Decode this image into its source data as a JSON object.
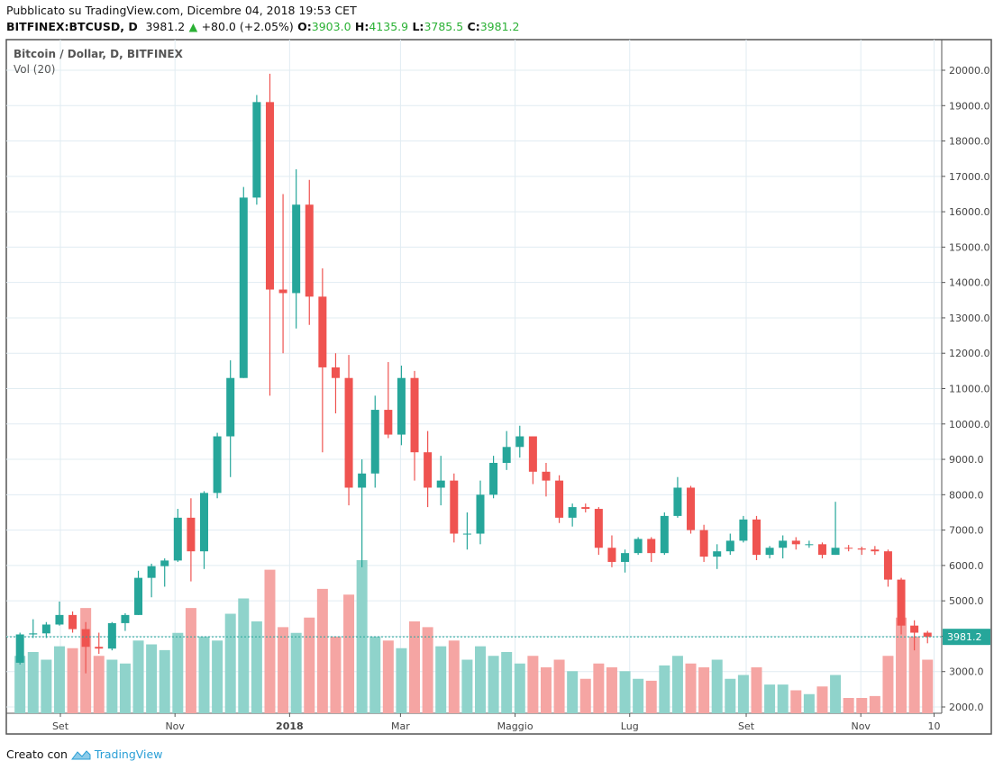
{
  "header": {
    "published": "Pubblicato su TradingView.com, Dicembre 04, 2018 19:53 CET",
    "symbol": "BITFINEX:BTCUSD, D",
    "last": "3981.2",
    "change": "+80.0 (+2.05%)",
    "o_label": "O:",
    "o": "3903.0",
    "h_label": "H:",
    "h": "4135.9",
    "l_label": "L:",
    "l": "3785.5",
    "c_label": "C:",
    "c": "3981.2"
  },
  "legend": {
    "title": "Bitcoin / Dollar, D, BITFINEX",
    "volume": "Vol (20)"
  },
  "footer": {
    "created_with": "Creato con",
    "brand": "TradingView"
  },
  "colors": {
    "up": "#26a69a",
    "down": "#ef5350",
    "vol_up": "#8fd3cb",
    "vol_down": "#f5a5a3",
    "grid": "#e1ecf2",
    "last_price": "#26a69a"
  },
  "chart_data": {
    "type": "candlestick",
    "interval_shown": "weekly approximation of daily candles",
    "ylim": [
      1800,
      20800
    ],
    "yticks": [
      "2000.0",
      "3000.0",
      "4000.0",
      "5000.0",
      "6000.0",
      "7000.0",
      "8000.0",
      "9000.0",
      "10000.0",
      "11000.0",
      "12000.0",
      "13000.0",
      "14000.0",
      "15000.0",
      "16000.0",
      "17000.0",
      "18000.0",
      "19000.0",
      "20000.0"
    ],
    "xticks": [
      {
        "date": "2017-09-01",
        "label": "Set"
      },
      {
        "date": "2017-11-01",
        "label": "Nov"
      },
      {
        "date": "2018-01-01",
        "label": "2018"
      },
      {
        "date": "2018-03-01",
        "label": "Mar"
      },
      {
        "date": "2018-05-01",
        "label": "Maggio"
      },
      {
        "date": "2018-07-01",
        "label": "Lug"
      },
      {
        "date": "2018-09-01",
        "label": "Set"
      },
      {
        "date": "2018-11-01",
        "label": "Nov"
      },
      {
        "date": "2018-12-10",
        "label": "10"
      }
    ],
    "last_price": 3981.2,
    "last_price_label": "3981.2",
    "candles": [
      [
        "2017-08-07",
        3250,
        4100,
        3200,
        4050,
        30
      ],
      [
        "2017-08-14",
        4050,
        4480,
        3950,
        4080,
        32
      ],
      [
        "2017-08-21",
        4080,
        4400,
        3950,
        4330,
        28
      ],
      [
        "2017-08-28",
        4330,
        4980,
        4300,
        4600,
        35
      ],
      [
        "2017-09-04",
        4600,
        4700,
        4100,
        4200,
        34
      ],
      [
        "2017-09-11",
        4200,
        4400,
        2950,
        3700,
        55
      ],
      [
        "2017-09-18",
        3700,
        4100,
        3500,
        3650,
        30
      ],
      [
        "2017-09-25",
        3650,
        4400,
        3600,
        4370,
        28
      ],
      [
        "2017-10-02",
        4370,
        4650,
        4150,
        4600,
        26
      ],
      [
        "2017-10-09",
        4600,
        5850,
        4600,
        5650,
        38
      ],
      [
        "2017-10-16",
        5650,
        6050,
        5100,
        5980,
        36
      ],
      [
        "2017-10-23",
        5980,
        6200,
        5400,
        6140,
        33
      ],
      [
        "2017-10-30",
        6140,
        7600,
        6100,
        7350,
        42
      ],
      [
        "2017-11-06",
        7350,
        7900,
        5550,
        6400,
        55
      ],
      [
        "2017-11-13",
        6400,
        8100,
        5900,
        8050,
        40
      ],
      [
        "2017-11-20",
        8050,
        9750,
        7900,
        9650,
        38
      ],
      [
        "2017-11-27",
        9650,
        11800,
        8500,
        11300,
        52
      ],
      [
        "2017-12-04",
        11300,
        16700,
        11300,
        16400,
        60
      ],
      [
        "2017-12-11",
        16400,
        19300,
        16200,
        19100,
        48
      ],
      [
        "2017-12-18",
        19100,
        19900,
        10800,
        13800,
        75
      ],
      [
        "2017-12-25",
        13800,
        16500,
        12000,
        13700,
        45
      ],
      [
        "2018-01-01",
        13700,
        17200,
        12700,
        16200,
        42
      ],
      [
        "2018-01-08",
        16200,
        16900,
        12800,
        13600,
        50
      ],
      [
        "2018-01-15",
        13600,
        14400,
        9200,
        11600,
        65
      ],
      [
        "2018-01-22",
        11600,
        12000,
        10300,
        11300,
        40
      ],
      [
        "2018-01-29",
        11300,
        11950,
        7700,
        8200,
        62
      ],
      [
        "2018-02-05",
        8200,
        9000,
        5950,
        8600,
        80
      ],
      [
        "2018-02-12",
        8600,
        10800,
        8200,
        10400,
        40
      ],
      [
        "2018-02-19",
        10400,
        11750,
        9600,
        9700,
        38
      ],
      [
        "2018-02-26",
        9700,
        11650,
        9400,
        11300,
        34
      ],
      [
        "2018-03-05",
        11300,
        11500,
        8400,
        9200,
        48
      ],
      [
        "2018-03-12",
        9200,
        9800,
        7650,
        8200,
        45
      ],
      [
        "2018-03-19",
        8200,
        9100,
        7700,
        8400,
        35
      ],
      [
        "2018-03-26",
        8400,
        8600,
        6650,
        6900,
        38
      ],
      [
        "2018-04-02",
        6900,
        7500,
        6450,
        6900,
        28
      ],
      [
        "2018-04-09",
        6900,
        8400,
        6600,
        8000,
        35
      ],
      [
        "2018-04-16",
        8000,
        9100,
        7900,
        8900,
        30
      ],
      [
        "2018-04-23",
        8900,
        9800,
        8700,
        9350,
        32
      ],
      [
        "2018-04-30",
        9350,
        9950,
        9050,
        9650,
        26
      ],
      [
        "2018-05-07",
        9650,
        9650,
        8300,
        8650,
        30
      ],
      [
        "2018-05-14",
        8650,
        8900,
        7950,
        8400,
        24
      ],
      [
        "2018-05-21",
        8400,
        8550,
        7200,
        7350,
        28
      ],
      [
        "2018-05-28",
        7350,
        7750,
        7100,
        7650,
        22
      ],
      [
        "2018-06-04",
        7650,
        7750,
        7500,
        7600,
        18
      ],
      [
        "2018-06-11",
        7600,
        7650,
        6300,
        6500,
        26
      ],
      [
        "2018-06-18",
        6500,
        6850,
        5950,
        6100,
        24
      ],
      [
        "2018-06-25",
        6100,
        6450,
        5800,
        6350,
        22
      ],
      [
        "2018-07-02",
        6350,
        6800,
        6300,
        6750,
        18
      ],
      [
        "2018-07-09",
        6750,
        6800,
        6100,
        6350,
        17
      ],
      [
        "2018-07-16",
        6350,
        7500,
        6300,
        7400,
        25
      ],
      [
        "2018-07-23",
        7400,
        8500,
        7350,
        8200,
        30
      ],
      [
        "2018-07-30",
        8200,
        8250,
        6900,
        7000,
        26
      ],
      [
        "2018-08-06",
        7000,
        7150,
        6100,
        6250,
        24
      ],
      [
        "2018-08-13",
        6250,
        6600,
        5900,
        6400,
        28
      ],
      [
        "2018-08-20",
        6400,
        6900,
        6300,
        6700,
        18
      ],
      [
        "2018-08-27",
        6700,
        7400,
        6650,
        7300,
        20
      ],
      [
        "2018-09-03",
        7300,
        7400,
        6150,
        6300,
        24
      ],
      [
        "2018-09-10",
        6300,
        6550,
        6200,
        6500,
        15
      ],
      [
        "2018-09-17",
        6500,
        6850,
        6200,
        6700,
        15
      ],
      [
        "2018-09-24",
        6700,
        6800,
        6450,
        6600,
        12
      ],
      [
        "2018-10-01",
        6600,
        6700,
        6500,
        6600,
        10
      ],
      [
        "2018-10-08",
        6600,
        6650,
        6200,
        6300,
        14
      ],
      [
        "2018-10-15",
        6300,
        7800,
        6300,
        6500,
        20
      ],
      [
        "2018-10-22",
        6500,
        6580,
        6400,
        6480,
        8
      ],
      [
        "2018-10-29",
        6480,
        6530,
        6300,
        6450,
        8
      ],
      [
        "2018-11-05",
        6450,
        6550,
        6300,
        6400,
        9
      ],
      [
        "2018-11-12",
        6400,
        6450,
        5400,
        5600,
        30
      ],
      [
        "2018-11-19",
        5600,
        5650,
        4050,
        4300,
        50
      ],
      [
        "2018-11-26",
        4300,
        4450,
        3600,
        4100,
        40
      ],
      [
        "2018-12-03",
        4100,
        4150,
        3800,
        3981.2,
        28
      ]
    ]
  }
}
